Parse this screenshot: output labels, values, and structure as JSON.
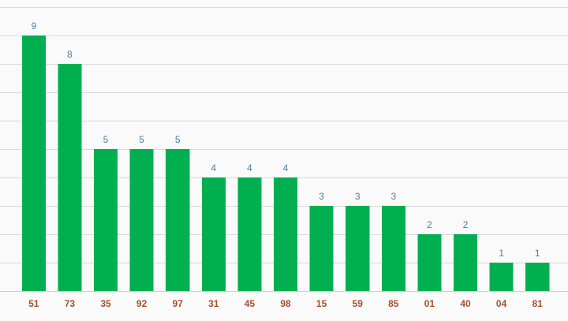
{
  "chart_data": {
    "type": "bar",
    "categories": [
      "51",
      "73",
      "35",
      "92",
      "97",
      "31",
      "45",
      "98",
      "15",
      "59",
      "85",
      "01",
      "40",
      "04",
      "81"
    ],
    "values": [
      9,
      8,
      5,
      5,
      5,
      4,
      4,
      4,
      3,
      3,
      3,
      2,
      2,
      1,
      1
    ],
    "title": "",
    "xlabel": "",
    "ylabel": "",
    "ylim": [
      0,
      10
    ],
    "grid": true,
    "legend": "none",
    "data_labels": true
  },
  "colors": {
    "background": "#fafafa",
    "bar": "#00b050",
    "data_label": "#4e7ea0",
    "tick_label": "#a0522d",
    "grid": "#d9d9d9",
    "axis": "#cfcfcf"
  }
}
